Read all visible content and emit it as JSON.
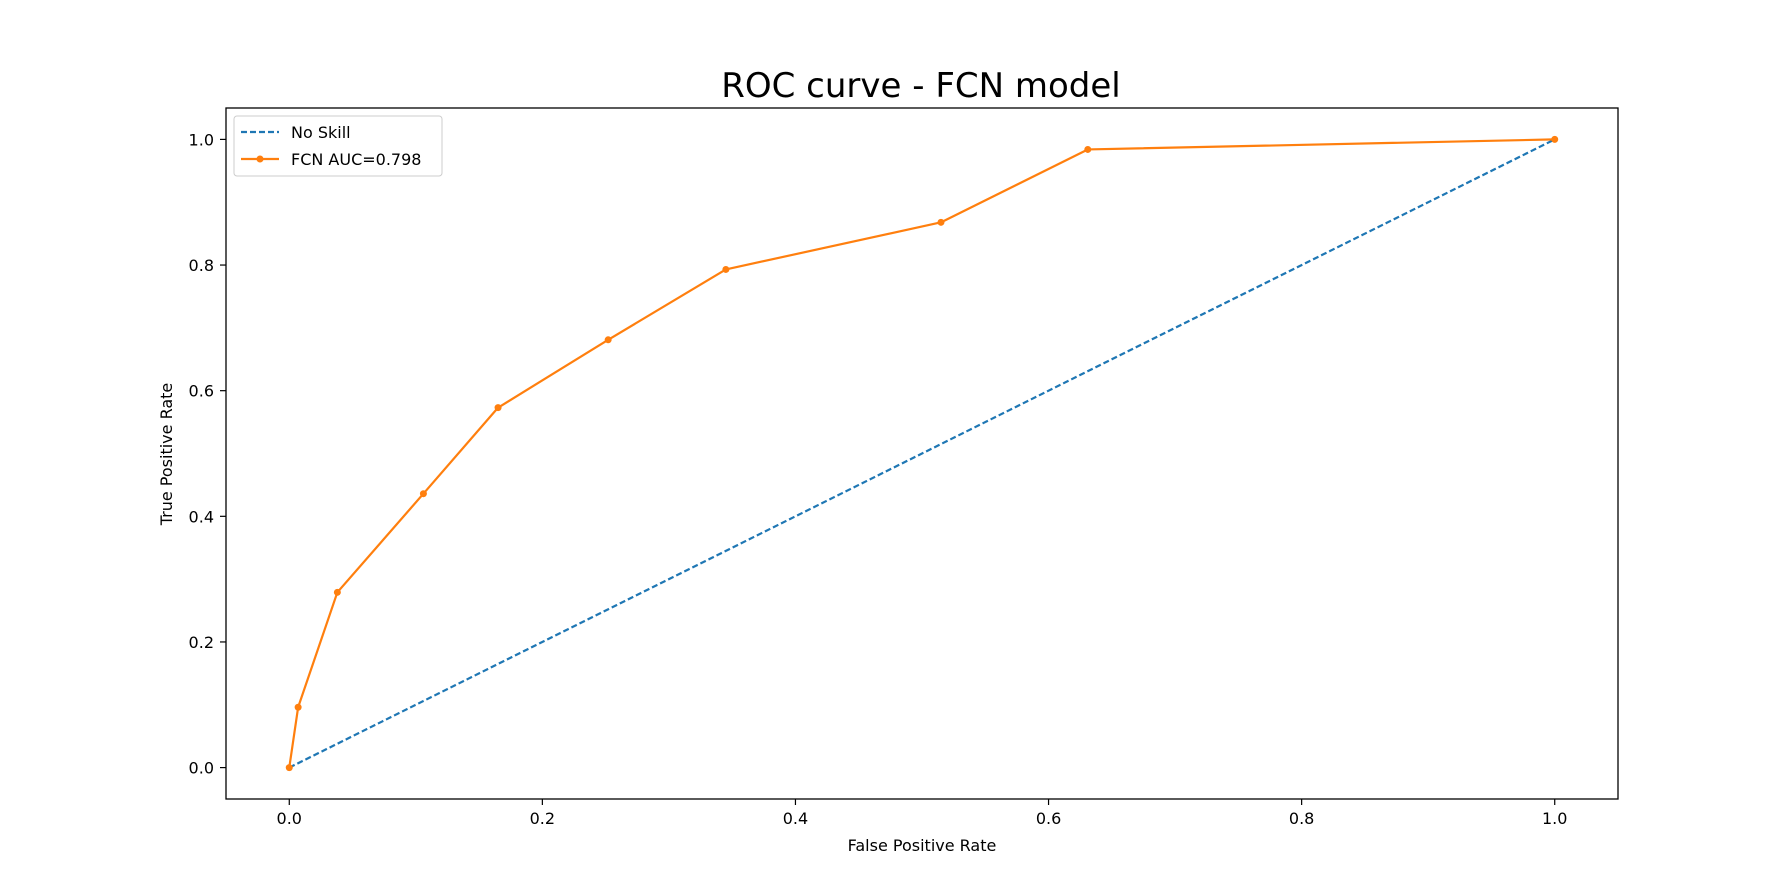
{
  "chart_data": {
    "type": "line",
    "title": "ROC curve - FCN model",
    "xlabel": "False Positive Rate",
    "ylabel": "True Positive Rate",
    "xlim": [
      -0.05,
      1.05
    ],
    "ylim": [
      -0.05,
      1.05
    ],
    "xticks": [
      0.0,
      0.2,
      0.4,
      0.6,
      0.8,
      1.0
    ],
    "yticks": [
      0.0,
      0.2,
      0.4,
      0.6,
      0.8,
      1.0
    ],
    "xtick_labels": [
      "0.0",
      "0.2",
      "0.4",
      "0.6",
      "0.8",
      "1.0"
    ],
    "ytick_labels": [
      "0.0",
      "0.2",
      "0.4",
      "0.6",
      "0.8",
      "1.0"
    ],
    "grid": false,
    "legend": "upper left",
    "series": [
      {
        "name": "No Skill",
        "style": "dashed",
        "markers": false,
        "color": "#1f77b4",
        "x": [
          0.0,
          1.0
        ],
        "y": [
          0.0,
          1.0
        ]
      },
      {
        "name": "FCN AUC=0.798",
        "style": "solid",
        "markers": true,
        "color": "#ff7f0e",
        "x": [
          0.0,
          0.007,
          0.038,
          0.106,
          0.165,
          0.252,
          0.345,
          0.515,
          0.631,
          1.0
        ],
        "y": [
          0.0,
          0.096,
          0.279,
          0.436,
          0.573,
          0.681,
          0.793,
          0.868,
          0.984,
          1.0
        ]
      }
    ]
  }
}
